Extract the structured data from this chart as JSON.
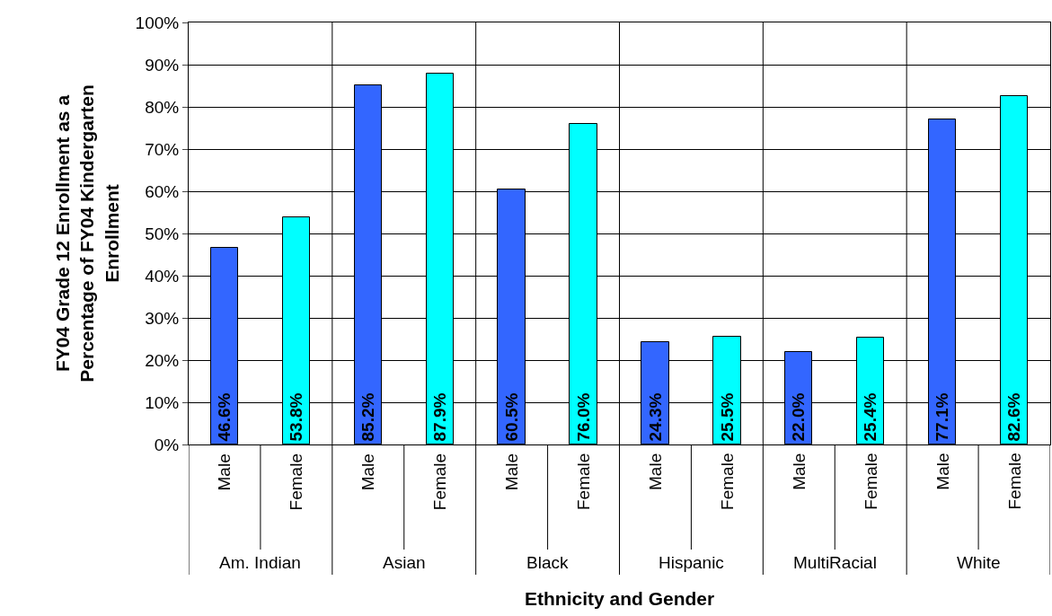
{
  "chart_data": {
    "type": "bar",
    "categories": [
      "Am. Indian",
      "Asian",
      "Black",
      "Hispanic",
      "MultiRacial",
      "White"
    ],
    "series": [
      {
        "name": "Male",
        "color": "#3366ff",
        "values": [
          46.6,
          85.2,
          60.5,
          24.3,
          22.0,
          77.1
        ],
        "value_labels": [
          "46.6%",
          "85.2%",
          "60.5%",
          "24.3%",
          "22.0%",
          "77.1%"
        ]
      },
      {
        "name": "Female",
        "color": "#00ffff",
        "values": [
          53.8,
          87.9,
          76.0,
          25.5,
          25.4,
          82.6
        ],
        "value_labels": [
          "53.8%",
          "87.9%",
          "76.0%",
          "25.5%",
          "25.4%",
          "82.6%"
        ]
      }
    ],
    "xlabel": "Ethnicity and Gender",
    "ylabel": "FY04 Grade 12 Enrollment as a Percentage of FY04 Kindergarten Enrollment",
    "ylim": [
      0,
      100
    ],
    "yticks": [
      {
        "value": 0,
        "label": "0%"
      },
      {
        "value": 10,
        "label": "10%"
      },
      {
        "value": 20,
        "label": "20%"
      },
      {
        "value": 30,
        "label": "30%"
      },
      {
        "value": 40,
        "label": "40%"
      },
      {
        "value": 50,
        "label": "50%"
      },
      {
        "value": 60,
        "label": "60%"
      },
      {
        "value": 70,
        "label": "70%"
      },
      {
        "value": 80,
        "label": "80%"
      },
      {
        "value": 90,
        "label": "90%"
      },
      {
        "value": 100,
        "label": "100%"
      }
    ],
    "grid": true,
    "legend": false
  }
}
